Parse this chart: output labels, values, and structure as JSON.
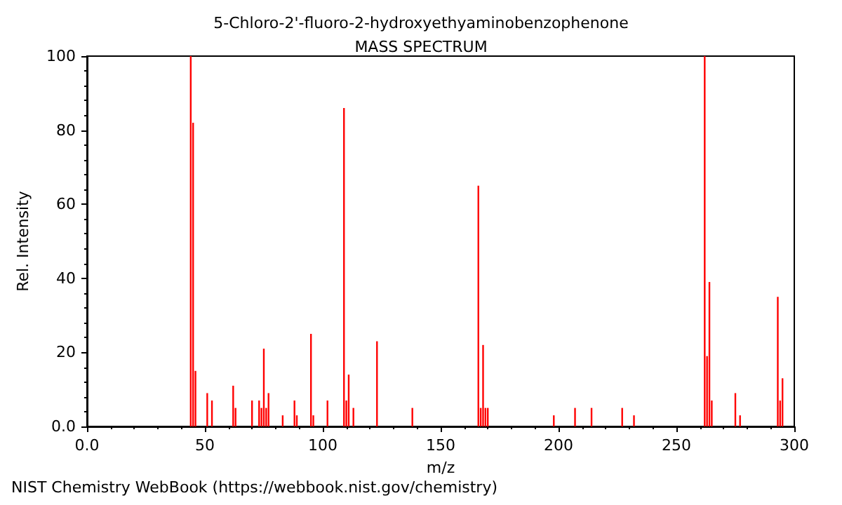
{
  "chart_data": {
    "type": "bar",
    "title": "5-Chloro-2'-fluoro-2-hydroxyethyaminobenzophenone",
    "subtitle": "MASS SPECTRUM",
    "xlabel": "m/z",
    "ylabel": "Rel. Intensity",
    "annotations": [
      "NIST Chemistry WebBook (https://webbook.nist.gov/chemistry)"
    ],
    "x": [
      44,
      45,
      46,
      51,
      53,
      62,
      63,
      70,
      73,
      74,
      75,
      76,
      77,
      83,
      88,
      89,
      95,
      96,
      102,
      109,
      110,
      111,
      113,
      123,
      138,
      166,
      167,
      168,
      169,
      170,
      198,
      207,
      214,
      227,
      232,
      262,
      263,
      264,
      265,
      275,
      277,
      293,
      294,
      295
    ],
    "values": [
      100,
      82,
      15,
      9,
      7,
      11,
      5,
      7,
      7,
      5,
      21,
      5,
      9,
      3,
      7,
      3,
      25,
      3,
      7,
      86,
      7,
      14,
      5,
      23,
      5,
      65,
      5,
      22,
      5,
      5,
      3,
      5,
      5,
      5,
      3,
      100,
      19,
      39,
      7,
      9,
      3,
      35,
      7,
      13
    ],
    "color": "#ff0000",
    "xlim": [
      0,
      300
    ],
    "xticks": [
      {
        "value": 0,
        "label": "0.0"
      },
      50,
      100,
      150,
      200,
      250,
      300
    ],
    "ylim": [
      0,
      100
    ],
    "yticks": [
      {
        "value": 0,
        "label": "0.0"
      },
      20,
      40,
      60,
      80,
      100
    ],
    "grid": false
  }
}
